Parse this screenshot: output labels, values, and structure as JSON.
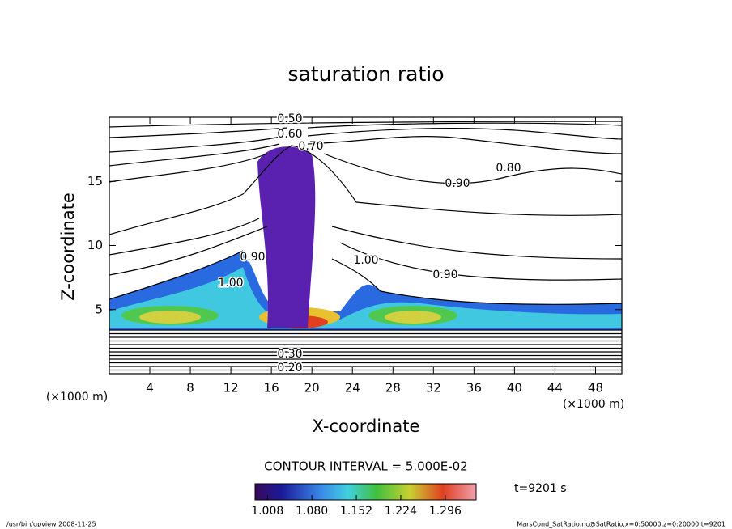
{
  "chart_data": {
    "type": "contour",
    "title": "saturation ratio",
    "x_label": "X-coordinate",
    "y_label": "Z-coordinate",
    "x_unit": "(×1000 m)",
    "y_unit": "(×1000 m)",
    "xlim": [
      0,
      50.6
    ],
    "xticks": [
      4,
      8,
      12,
      16,
      20,
      24,
      28,
      32,
      36,
      40,
      44,
      48
    ],
    "ylim": [
      0,
      20
    ],
    "yticks": [
      5,
      10,
      15
    ],
    "contour_labels": [
      "0.50",
      "0.60",
      "0.70",
      "0.80",
      "0.90",
      "1.00",
      "0.20",
      "0.30"
    ],
    "contour_interval_label": "CONTOUR INTERVAL = 5.000E-02",
    "colorbar": {
      "lim": [
        0.988,
        1.346
      ],
      "ticks": [
        1.008,
        {
          "value": 1.08,
          "label": "1.080"
        },
        1.152,
        1.224,
        1.296
      ]
    },
    "time_label": "t=9201 s",
    "footer_left": "/usr/bin/gpview   2008-11-25",
    "footer_right": "MarsCond_SatRatio.nc@SatRatio,x=0:50000,z=0:20000,t=9201"
  }
}
